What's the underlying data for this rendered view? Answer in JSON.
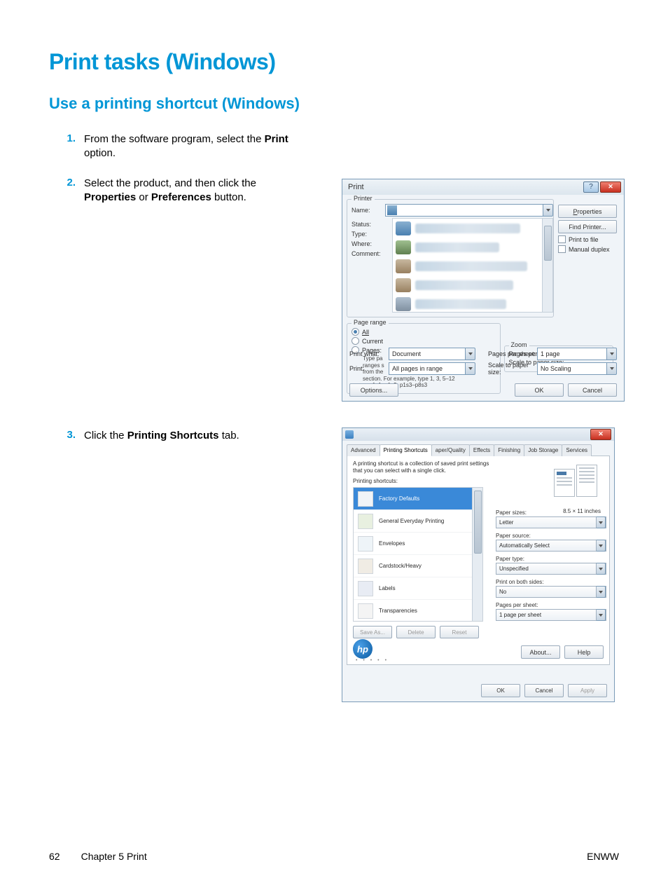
{
  "headings": {
    "page_title": "Print tasks (Windows)",
    "section_title": "Use a printing shortcut (Windows)"
  },
  "steps": [
    {
      "num": "1.",
      "html": "From the software program, select the <b>Print</b> option."
    },
    {
      "num": "2.",
      "html": "Select the product, and then click the <b>Properties</b> or <b>Preferences</b> button."
    },
    {
      "num": "3.",
      "html": "Click the <b>Printing Shortcuts</b> tab."
    }
  ],
  "print_dialog": {
    "title": "Print",
    "groups": {
      "printer": "Printer",
      "page_range": "Page range",
      "zoom": "Zoom"
    },
    "labels": {
      "name": "Name:",
      "status": "Status:",
      "type": "Type:",
      "where": "Where:",
      "comment": "Comment:",
      "all": "All",
      "current": "Current",
      "pages": "Pages:",
      "type_hint": "Type pa",
      "ranges_hint": "ranges s",
      "from_hint": "from the",
      "example": "section. For example, type 1, 3, 5–12",
      "example2": "or p1s1, p1s2, p1s3–p8s3",
      "print_what": "Print what:",
      "print": "Print:",
      "pages_per_sheet": "Pages per sheet:",
      "scale_to_paper": "Scale to paper size:"
    },
    "values": {
      "print_what": "Document",
      "print": "All pages in range",
      "pages_per_sheet": "1 page",
      "scale_to_paper": "No Scaling"
    },
    "buttons": {
      "properties": "Properties",
      "find_printer": "Find Printer...",
      "print_to_file": "Print to file",
      "manual_duplex": "Manual duplex",
      "options": "Options...",
      "ok": "OK",
      "cancel": "Cancel"
    }
  },
  "props_dialog": {
    "tabs": [
      "Advanced",
      "Printing Shortcuts",
      "aper/Quality",
      "Effects",
      "Finishing",
      "Job Storage",
      "Services"
    ],
    "active_tab": 1,
    "description": "A printing shortcut is a collection of saved print settings that you can select with a single click.",
    "list_label": "Printing shortcuts:",
    "shortcuts": [
      "Factory Defaults",
      "General Everyday Printing",
      "Envelopes",
      "Cardstock/Heavy",
      "Labels",
      "Transparencies"
    ],
    "selected_shortcut": 0,
    "opts": {
      "paper_sizes": "Paper sizes:",
      "paper_sizes_v": "Letter",
      "dim": "8.5 × 11 inches",
      "paper_source": "Paper source:",
      "paper_source_v": "Automatically Select",
      "paper_type": "Paper type:",
      "paper_type_v": "Unspecified",
      "both_sides": "Print on both sides:",
      "both_sides_v": "No",
      "pps": "Pages per sheet:",
      "pps_v": "1 page per sheet"
    },
    "buttons": {
      "save_as": "Save As...",
      "delete": "Delete",
      "reset": "Reset",
      "about": "About...",
      "help": "Help",
      "ok": "OK",
      "cancel": "Cancel",
      "apply": "Apply"
    }
  },
  "footer": {
    "page_num": "62",
    "chapter": "Chapter 5   Print",
    "region": "ENWW"
  },
  "colors": {
    "accent": "#0096d6",
    "dialog_border": "#7a9bb8",
    "close_red": "#c83020",
    "sel_blue": "#3a89d8"
  }
}
